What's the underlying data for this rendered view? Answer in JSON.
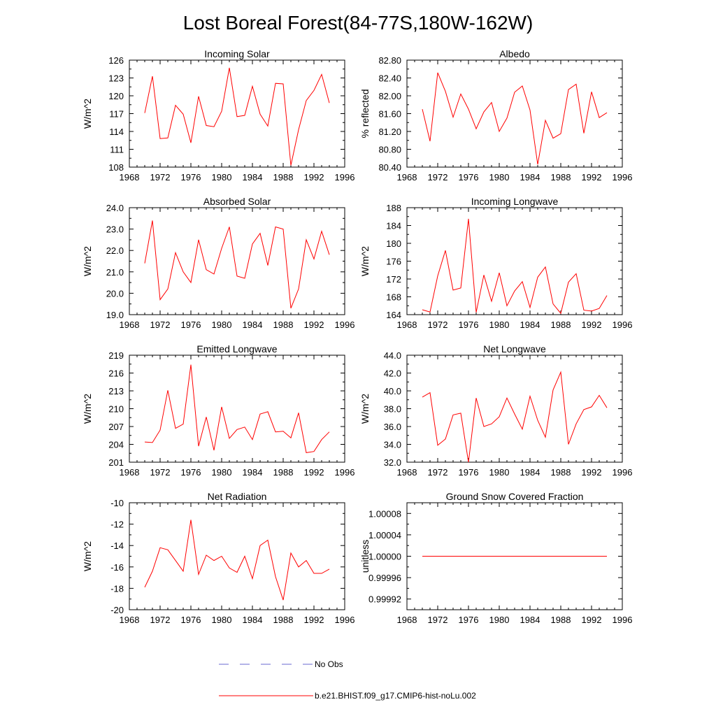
{
  "figure": {
    "title": "Lost Boreal Forest(84-77S,180W-162W)"
  },
  "legend": {
    "items": [
      {
        "label": "No Obs",
        "color": "#6a6ad0",
        "style": "dashed"
      },
      {
        "label": "b.e21.BHIST.f09_g17.CMIP6-hist-noLu.002",
        "color": "#ff0000",
        "style": "solid"
      }
    ]
  },
  "chart_data": [
    {
      "type": "line",
      "title": "Incoming Solar",
      "ylabel": "W/m^2",
      "xlim": [
        1968,
        1996
      ],
      "xticks": [
        "1968",
        "1972",
        "1976",
        "1980",
        "1984",
        "1988",
        "1992",
        "1996"
      ],
      "ylim": [
        108,
        126
      ],
      "yticks": [
        "108",
        "111",
        "114",
        "117",
        "120",
        "123",
        "126"
      ],
      "series": [
        {
          "color": "#ff0000",
          "x": [
            1970,
            1971,
            1972,
            1973,
            1974,
            1975,
            1976,
            1977,
            1978,
            1979,
            1980,
            1981,
            1982,
            1983,
            1984,
            1985,
            1986,
            1987,
            1988,
            1989,
            1990,
            1991,
            1992,
            1993,
            1994
          ],
          "y": [
            117.1,
            123.3,
            112.8,
            112.9,
            118.4,
            116.9,
            112.1,
            119.9,
            115.0,
            114.8,
            117.4,
            124.7,
            116.5,
            116.7,
            121.6,
            116.9,
            114.9,
            122.1,
            122.0,
            108.3,
            114.3,
            119.2,
            120.9,
            123.6,
            118.8
          ]
        }
      ]
    },
    {
      "type": "line",
      "title": "Albedo",
      "ylabel": "% reflected",
      "xlim": [
        1968,
        1996
      ],
      "xticks": [
        "1968",
        "1972",
        "1976",
        "1980",
        "1984",
        "1988",
        "1992",
        "1996"
      ],
      "ylim": [
        80.4,
        82.8
      ],
      "yticks": [
        "80.40",
        "80.80",
        "81.20",
        "81.60",
        "82.00",
        "82.40",
        "82.80"
      ],
      "series": [
        {
          "color": "#ff0000",
          "x": [
            1970,
            1971,
            1972,
            1973,
            1974,
            1975,
            1976,
            1977,
            1978,
            1979,
            1980,
            1981,
            1982,
            1983,
            1984,
            1985,
            1986,
            1987,
            1988,
            1989,
            1990,
            1991,
            1992,
            1993,
            1994
          ],
          "y": [
            81.7,
            80.98,
            82.52,
            82.1,
            81.52,
            82.04,
            81.7,
            81.26,
            81.64,
            81.85,
            81.2,
            81.5,
            82.08,
            82.22,
            81.68,
            80.46,
            81.45,
            81.05,
            81.15,
            82.14,
            82.26,
            81.16,
            82.09,
            81.51,
            81.62
          ]
        }
      ]
    },
    {
      "type": "line",
      "title": "Absorbed Solar",
      "ylabel": "W/m^2",
      "xlim": [
        1968,
        1996
      ],
      "xticks": [
        "1968",
        "1972",
        "1976",
        "1980",
        "1984",
        "1988",
        "1992",
        "1996"
      ],
      "ylim": [
        19.0,
        24.0
      ],
      "yticks": [
        "19.0",
        "20.0",
        "21.0",
        "22.0",
        "23.0",
        "24.0"
      ],
      "series": [
        {
          "color": "#ff0000",
          "x": [
            1970,
            1971,
            1972,
            1973,
            1974,
            1975,
            1976,
            1977,
            1978,
            1979,
            1980,
            1981,
            1982,
            1983,
            1984,
            1985,
            1986,
            1987,
            1988,
            1989,
            1990,
            1991,
            1992,
            1993,
            1994
          ],
          "y": [
            21.4,
            23.4,
            19.7,
            20.2,
            21.9,
            21.0,
            20.5,
            22.5,
            21.1,
            20.9,
            22.1,
            23.1,
            20.8,
            20.7,
            22.3,
            22.8,
            21.3,
            23.1,
            23.0,
            19.3,
            20.2,
            22.5,
            21.6,
            22.9,
            21.8
          ]
        }
      ]
    },
    {
      "type": "line",
      "title": "Incoming Longwave",
      "ylabel": "W/m^2",
      "xlim": [
        1968,
        1996
      ],
      "xticks": [
        "1968",
        "1972",
        "1976",
        "1980",
        "1984",
        "1988",
        "1992",
        "1996"
      ],
      "ylim": [
        164,
        188
      ],
      "yticks": [
        "164",
        "168",
        "172",
        "176",
        "180",
        "184",
        "188"
      ],
      "series": [
        {
          "color": "#ff0000",
          "x": [
            1970,
            1971,
            1972,
            1973,
            1974,
            1975,
            1976,
            1977,
            1978,
            1979,
            1980,
            1981,
            1982,
            1983,
            1984,
            1985,
            1986,
            1987,
            1988,
            1989,
            1990,
            1991,
            1992,
            1993,
            1994
          ],
          "y": [
            165.1,
            164.6,
            172.7,
            178.4,
            169.5,
            170.0,
            185.5,
            164.5,
            172.9,
            167.0,
            173.4,
            166.0,
            169.3,
            171.4,
            165.6,
            172.4,
            174.7,
            166.4,
            164.3,
            171.3,
            173.2,
            165.0,
            164.8,
            165.4,
            168.3
          ]
        }
      ]
    },
    {
      "type": "line",
      "title": "Emitted Longwave",
      "ylabel": "W/m^2",
      "xlim": [
        1968,
        1996
      ],
      "xticks": [
        "1968",
        "1972",
        "1976",
        "1980",
        "1984",
        "1988",
        "1992",
        "1996"
      ],
      "ylim": [
        201,
        219
      ],
      "yticks": [
        "201",
        "204",
        "207",
        "210",
        "213",
        "216",
        "219"
      ],
      "series": [
        {
          "color": "#ff0000",
          "x": [
            1970,
            1971,
            1972,
            1973,
            1974,
            1975,
            1976,
            1977,
            1978,
            1979,
            1980,
            1981,
            1982,
            1983,
            1984,
            1985,
            1986,
            1987,
            1988,
            1989,
            1990,
            1991,
            1992,
            1993,
            1994
          ],
          "y": [
            204.4,
            204.3,
            206.4,
            213.1,
            206.7,
            207.4,
            217.4,
            203.7,
            208.6,
            203.0,
            210.3,
            205.0,
            206.5,
            206.9,
            204.8,
            209.1,
            209.5,
            206.1,
            206.2,
            205.1,
            209.3,
            202.6,
            202.8,
            204.8,
            206.1
          ]
        }
      ]
    },
    {
      "type": "line",
      "title": "Net Longwave",
      "ylabel": "W/m^2",
      "xlim": [
        1968,
        1996
      ],
      "xticks": [
        "1968",
        "1972",
        "1976",
        "1980",
        "1984",
        "1988",
        "1992",
        "1996"
      ],
      "ylim": [
        32.0,
        44.0
      ],
      "yticks": [
        "32.0",
        "34.0",
        "36.0",
        "38.0",
        "40.0",
        "42.0",
        "44.0"
      ],
      "series": [
        {
          "color": "#ff0000",
          "x": [
            1970,
            1971,
            1972,
            1973,
            1974,
            1975,
            1976,
            1977,
            1978,
            1979,
            1980,
            1981,
            1982,
            1983,
            1984,
            1985,
            1986,
            1987,
            1988,
            1989,
            1990,
            1991,
            1992,
            1993,
            1994
          ],
          "y": [
            39.3,
            39.8,
            33.9,
            34.6,
            37.3,
            37.5,
            32.0,
            39.2,
            36.0,
            36.3,
            37.1,
            39.2,
            37.4,
            35.7,
            39.4,
            36.7,
            34.8,
            40.1,
            42.1,
            34.0,
            36.3,
            37.9,
            38.2,
            39.5,
            38.1
          ]
        }
      ]
    },
    {
      "type": "line",
      "title": "Net Radiation",
      "ylabel": "W/m^2",
      "xlim": [
        1968,
        1996
      ],
      "xticks": [
        "1968",
        "1972",
        "1976",
        "1980",
        "1984",
        "1988",
        "1992",
        "1996"
      ],
      "ylim": [
        -20,
        -10
      ],
      "yticks": [
        "-20",
        "-18",
        "-16",
        "-14",
        "-12",
        "-10"
      ],
      "series": [
        {
          "color": "#ff0000",
          "x": [
            1970,
            1971,
            1972,
            1973,
            1974,
            1975,
            1976,
            1977,
            1978,
            1979,
            1980,
            1981,
            1982,
            1983,
            1984,
            1985,
            1986,
            1987,
            1988,
            1989,
            1990,
            1991,
            1992,
            1993,
            1994
          ],
          "y": [
            -17.9,
            -16.4,
            -14.2,
            -14.4,
            -15.4,
            -16.4,
            -11.6,
            -16.7,
            -14.9,
            -15.4,
            -15.0,
            -16.1,
            -16.5,
            -15.0,
            -17.1,
            -14.0,
            -13.5,
            -16.9,
            -19.1,
            -14.7,
            -16.0,
            -15.4,
            -16.6,
            -16.6,
            -16.2
          ]
        }
      ]
    },
    {
      "type": "line",
      "title": "Ground Snow Covered Fraction",
      "ylabel": "unitless",
      "xlim": [
        1968,
        1996
      ],
      "xticks": [
        "1968",
        "1972",
        "1976",
        "1980",
        "1984",
        "1988",
        "1992",
        "1996"
      ],
      "ylim": [
        0.9999,
        1.0001
      ],
      "yticks": [
        "0.99992",
        "0.99996",
        "1.00000",
        "1.00004",
        "1.00008"
      ],
      "ytick_values": [
        0.99992,
        0.99996,
        1.0,
        1.00004,
        1.00008
      ],
      "series": [
        {
          "color": "#ff0000",
          "x": [
            1970,
            1994
          ],
          "y": [
            1.0,
            1.0
          ]
        }
      ]
    }
  ]
}
